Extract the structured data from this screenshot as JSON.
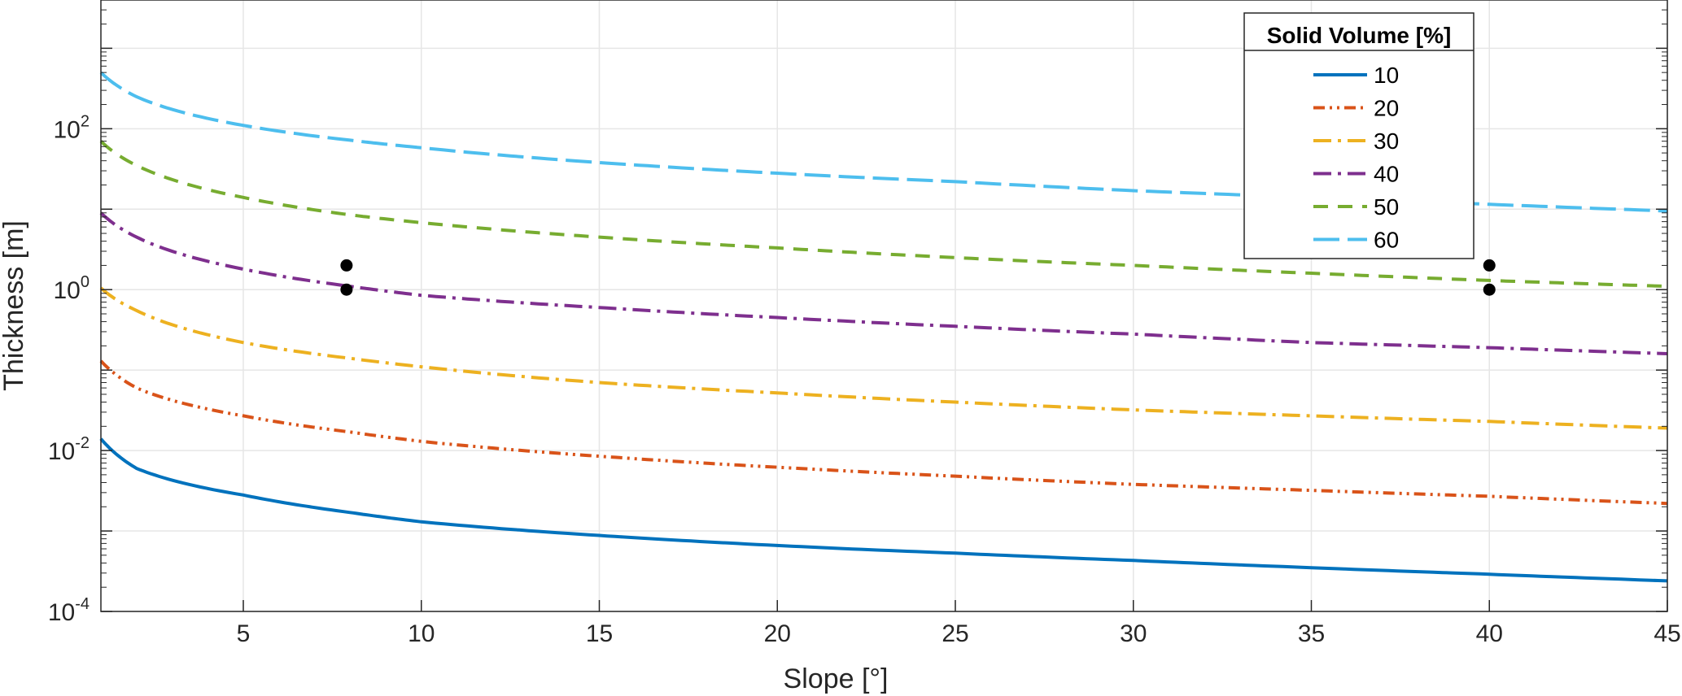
{
  "chart_data": {
    "type": "line",
    "xlabel": "Slope [°]",
    "ylabel": "Thickness [m]",
    "xlim": [
      1,
      45
    ],
    "ylim_log10": [
      -4,
      3.6
    ],
    "y_scale": "log",
    "x_ticks": [
      5,
      10,
      15,
      20,
      25,
      30,
      35,
      40,
      45
    ],
    "y_ticks": [
      {
        "base": "10",
        "exp": "-4",
        "value": 0.0001
      },
      {
        "base": "10",
        "exp": "-2",
        "value": 0.01
      },
      {
        "base": "10",
        "exp": "0",
        "value": 1
      },
      {
        "base": "10",
        "exp": "2",
        "value": 100
      }
    ],
    "grid": true,
    "legend": {
      "title": "Solid Volume [%]",
      "placement": "top-right"
    },
    "series": [
      {
        "name": "10",
        "color": "#0072BD",
        "style": "solid",
        "points": [
          [
            1,
            0.014
          ],
          [
            2,
            0.006
          ],
          [
            5,
            0.0028
          ],
          [
            8,
            0.0017
          ],
          [
            10,
            0.0013
          ],
          [
            15,
            0.00088
          ],
          [
            20,
            0.00066
          ],
          [
            25,
            0.00053
          ],
          [
            30,
            0.00043
          ],
          [
            35,
            0.00035
          ],
          [
            40,
            0.00029
          ],
          [
            45,
            0.00024
          ]
        ]
      },
      {
        "name": "20",
        "color": "#D95319",
        "style": "dash-dot-dot",
        "points": [
          [
            1,
            0.13
          ],
          [
            2,
            0.06
          ],
          [
            5,
            0.027
          ],
          [
            8,
            0.017
          ],
          [
            10,
            0.013
          ],
          [
            15,
            0.0085
          ],
          [
            20,
            0.0062
          ],
          [
            25,
            0.0048
          ],
          [
            30,
            0.0038
          ],
          [
            35,
            0.0032
          ],
          [
            40,
            0.0027
          ],
          [
            45,
            0.0022
          ]
        ]
      },
      {
        "name": "30",
        "color": "#EDB120",
        "style": "dash-dot",
        "points": [
          [
            1,
            1.05
          ],
          [
            2,
            0.55
          ],
          [
            5,
            0.22
          ],
          [
            8,
            0.14
          ],
          [
            10,
            0.11
          ],
          [
            15,
            0.07
          ],
          [
            20,
            0.052
          ],
          [
            25,
            0.04
          ],
          [
            30,
            0.032
          ],
          [
            35,
            0.027
          ],
          [
            40,
            0.023
          ],
          [
            45,
            0.019
          ]
        ]
      },
      {
        "name": "40",
        "color": "#7E2F8E",
        "style": "dash-dot",
        "points": [
          [
            1,
            9
          ],
          [
            2,
            4.5
          ],
          [
            5,
            1.8
          ],
          [
            8,
            1.1
          ],
          [
            10,
            0.85
          ],
          [
            15,
            0.6
          ],
          [
            20,
            0.45
          ],
          [
            25,
            0.35
          ],
          [
            30,
            0.28
          ],
          [
            35,
            0.22
          ],
          [
            40,
            0.19
          ],
          [
            45,
            0.16
          ]
        ]
      },
      {
        "name": "50",
        "color": "#77AC30",
        "style": "dashed",
        "points": [
          [
            1,
            70
          ],
          [
            2,
            35
          ],
          [
            5,
            14
          ],
          [
            8,
            8.5
          ],
          [
            10,
            6.8
          ],
          [
            15,
            4.5
          ],
          [
            20,
            3.3
          ],
          [
            25,
            2.5
          ],
          [
            30,
            2
          ],
          [
            35,
            1.6
          ],
          [
            40,
            1.3
          ],
          [
            45,
            1.1
          ]
        ]
      },
      {
        "name": "60",
        "color": "#4DBEEE",
        "style": "long-dash",
        "points": [
          [
            1,
            500
          ],
          [
            2,
            250
          ],
          [
            5,
            110
          ],
          [
            8,
            72
          ],
          [
            10,
            58
          ],
          [
            15,
            38
          ],
          [
            20,
            28
          ],
          [
            25,
            22
          ],
          [
            30,
            17
          ],
          [
            35,
            14
          ],
          [
            40,
            11.5
          ],
          [
            45,
            9.5
          ]
        ]
      }
    ],
    "markers": [
      {
        "x": 7.9,
        "y": 2.0
      },
      {
        "x": 7.9,
        "y": 1.0
      },
      {
        "x": 40,
        "y": 2.0
      },
      {
        "x": 40,
        "y": 1.0
      }
    ]
  }
}
